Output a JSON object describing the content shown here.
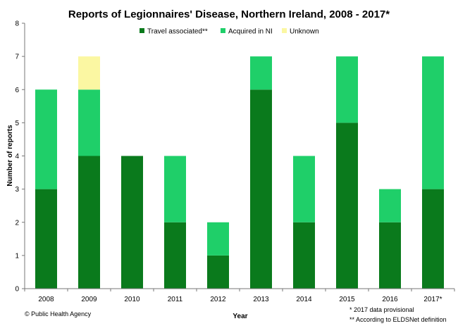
{
  "chart_data": {
    "type": "bar",
    "stacked": true,
    "title": "Reports of Legionnaires' Disease, Northern Ireland, 2008 - 2017*",
    "xlabel": "Year",
    "ylabel": "Number of reports",
    "ylim": [
      0,
      8
    ],
    "yticks": [
      "0",
      "1",
      "2",
      "3",
      "4",
      "5",
      "6",
      "7",
      "8"
    ],
    "grid": false,
    "legend": "top",
    "categories": [
      "2008",
      "2009",
      "2010",
      "2011",
      "2012",
      "2013",
      "2014",
      "2015",
      "2016",
      "2017*"
    ],
    "series": [
      {
        "name": "Travel associated**",
        "color": "#0a7a1c",
        "values": [
          3,
          4,
          4,
          2,
          1,
          6,
          2,
          5,
          2,
          3
        ]
      },
      {
        "name": "Acquired in NI",
        "color": "#1fcf69",
        "values": [
          3,
          2,
          0,
          2,
          1,
          1,
          2,
          2,
          1,
          4
        ]
      },
      {
        "name": "Unknown",
        "color": "#fbf7a2",
        "values": [
          0,
          1,
          0,
          0,
          0,
          0,
          0,
          0,
          0,
          0
        ]
      }
    ]
  },
  "footer": {
    "source": "© Public Health Agency",
    "notes": [
      "* 2017 data provisional",
      "** According to ELDSNet definition"
    ]
  }
}
